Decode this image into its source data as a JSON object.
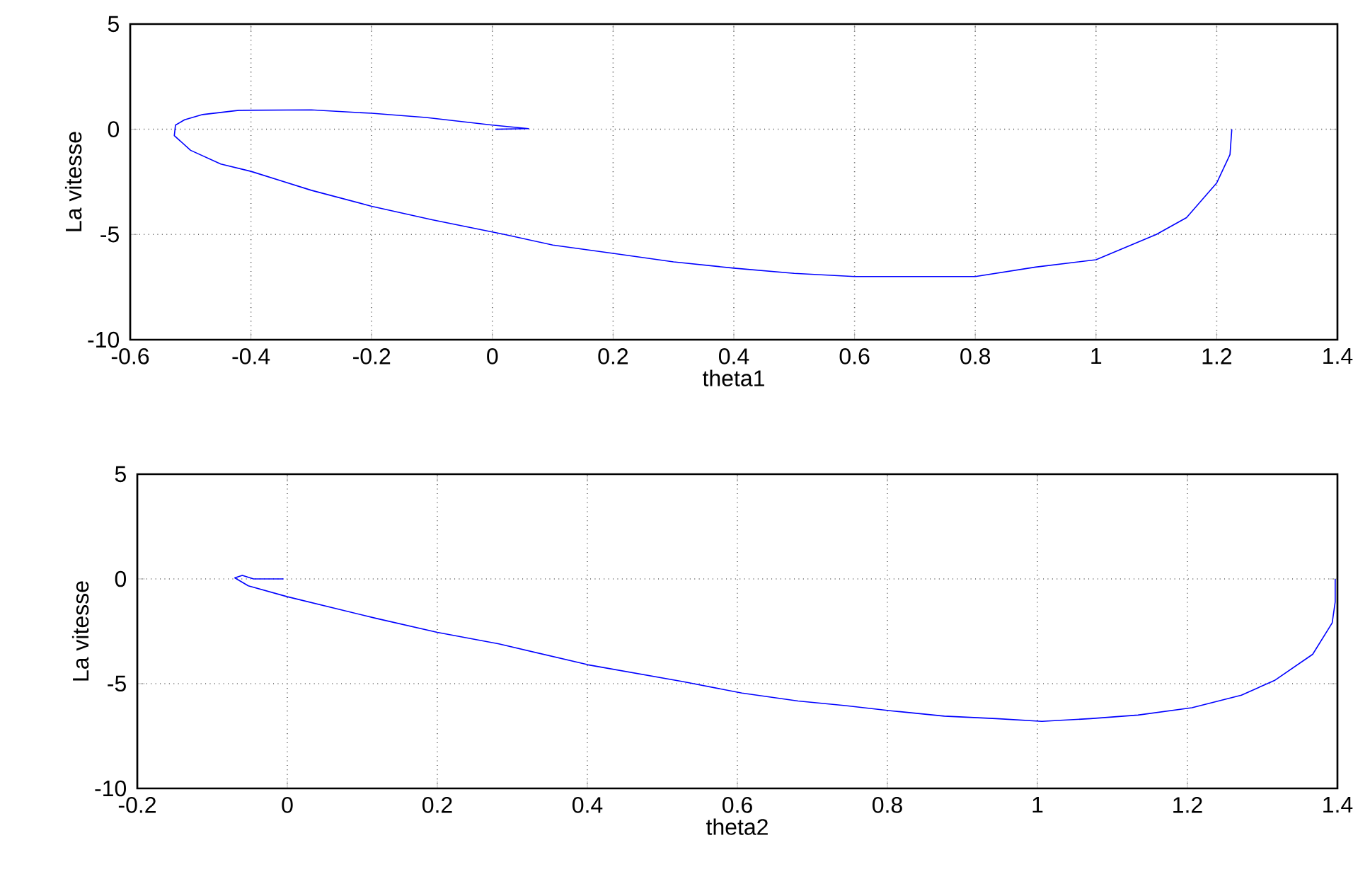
{
  "chart_data": [
    {
      "type": "line",
      "xlabel": "theta1",
      "ylabel": "La vitesse",
      "xlim": [
        -0.6,
        1.4
      ],
      "ylim": [
        -10,
        5
      ],
      "xticks": [
        -0.6,
        -0.4,
        -0.2,
        0,
        0.2,
        0.4,
        0.6,
        0.8,
        1,
        1.2,
        1.4
      ],
      "yticks": [
        -10,
        -5,
        0,
        5
      ],
      "grid": true,
      "marker": "none",
      "line_style": "solid",
      "series": [
        {
          "color": "#0000ff",
          "x": [
            1.225,
            1.222,
            1.2,
            1.15,
            1.1,
            1.0,
            0.9,
            0.8,
            0.7,
            0.6,
            0.5,
            0.4,
            0.3,
            0.2,
            0.1,
            0.02,
            -0.1,
            -0.2,
            -0.3,
            -0.4,
            -0.45,
            -0.5,
            -0.527,
            -0.525,
            -0.51,
            -0.48,
            -0.42,
            -0.3,
            -0.2,
            -0.11,
            0.0,
            0.06,
            0.005
          ],
          "values": [
            0,
            -1.2,
            -2.55,
            -4.2,
            -5.0,
            -6.2,
            -6.55,
            -7.0,
            -7.0,
            -7.0,
            -6.85,
            -6.6,
            -6.3,
            -5.9,
            -5.5,
            -5.0,
            -4.3,
            -3.66,
            -2.9,
            -2.0,
            -1.65,
            -1.0,
            -0.3,
            0.2,
            0.45,
            0.7,
            0.9,
            0.92,
            0.76,
            0.56,
            0.2,
            0.03,
            0
          ]
        }
      ]
    },
    {
      "type": "line",
      "xlabel": "theta2",
      "ylabel": "La vitesse",
      "xlim": [
        -0.2,
        1.4
      ],
      "ylim": [
        -10,
        5
      ],
      "xticks": [
        -0.2,
        0,
        0.2,
        0.4,
        0.6,
        0.8,
        1,
        1.2,
        1.4
      ],
      "yticks": [
        -10,
        -5,
        0,
        5
      ],
      "grid": true,
      "marker": "none",
      "line_style": "solid",
      "series": [
        {
          "color": "#0000ff",
          "x": [
            1.397,
            1.397,
            1.393,
            1.367,
            1.316,
            1.272,
            1.206,
            1.134,
            1.071,
            1.006,
            0.945,
            0.876,
            0.806,
            0.744,
            0.681,
            0.606,
            0.527,
            0.401,
            0.282,
            0.2,
            0.118,
            0.0,
            -0.052,
            -0.07,
            -0.06,
            -0.045,
            -0.005
          ],
          "values": [
            0,
            -1.1,
            -2.1,
            -3.6,
            -4.85,
            -5.55,
            -6.15,
            -6.5,
            -6.67,
            -6.8,
            -6.67,
            -6.55,
            -6.3,
            -6.05,
            -5.83,
            -5.45,
            -4.9,
            -4.1,
            -3.1,
            -2.55,
            -1.88,
            -0.85,
            -0.33,
            0.05,
            0.17,
            0.0,
            0.0
          ]
        }
      ]
    }
  ]
}
